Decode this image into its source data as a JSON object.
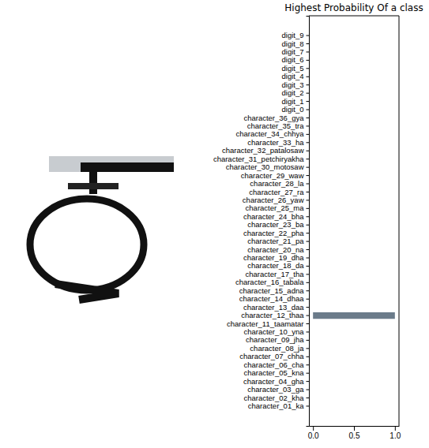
{
  "chart_data": {
    "type": "bar",
    "orientation": "horizontal",
    "title": "Highest Probability Of a class",
    "categories": [
      "character_01_ka",
      "character_02_kha",
      "character_03_ga",
      "character_04_gha",
      "character_05_kna",
      "character_06_cha",
      "character_07_chha",
      "character_08_ja",
      "character_09_jha",
      "character_10_yna",
      "character_11_taamatar",
      "character_12_thaa",
      "character_13_daa",
      "character_14_dhaa",
      "character_15_adna",
      "character_16_tabala",
      "character_17_tha",
      "character_18_da",
      "character_19_dha",
      "character_20_na",
      "character_21_pa",
      "character_22_pha",
      "character_23_ba",
      "character_24_bha",
      "character_25_ma",
      "character_26_yaw",
      "character_27_ra",
      "character_28_la",
      "character_29_waw",
      "character_30_motosaw",
      "character_31_petchiryakha",
      "character_32_patalosaw",
      "character_33_ha",
      "character_34_chhya",
      "character_35_tra",
      "character_36_gya",
      "digit_0",
      "digit_1",
      "digit_2",
      "digit_3",
      "digit_4",
      "digit_5",
      "digit_6",
      "digit_7",
      "digit_8",
      "digit_9"
    ],
    "values": [
      0,
      0,
      0,
      0,
      0,
      0,
      0,
      0,
      0,
      0,
      0,
      1,
      0,
      0,
      0,
      0,
      0,
      0,
      0,
      0,
      0,
      0,
      0,
      0,
      0,
      0,
      0,
      0,
      0,
      0,
      0,
      0,
      0,
      0,
      0,
      0,
      0,
      0,
      0,
      0,
      0,
      0,
      0,
      0,
      0,
      0
    ],
    "color": "#6b7b8a",
    "xlim": [
      -0.05,
      1.05
    ],
    "xticks": [
      {
        "value": 0,
        "label": "0.0"
      },
      {
        "value": 0.5,
        "label": "0.5"
      },
      {
        "value": 1,
        "label": "1.0"
      }
    ],
    "grid": false
  }
}
